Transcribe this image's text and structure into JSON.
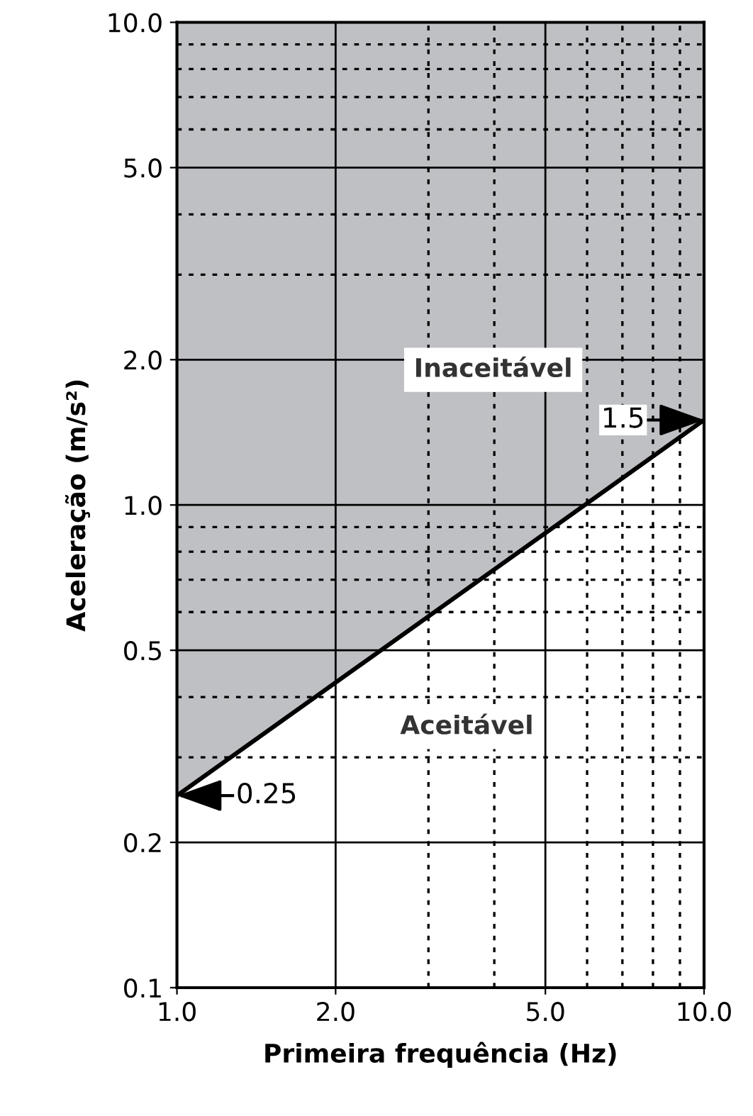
{
  "chart_data": {
    "type": "line",
    "xlabel": "Primeira frequência (Hz)",
    "ylabel": "Aceleração (m/s²)",
    "log": "xy",
    "grid": true,
    "xlim": [
      1,
      10
    ],
    "ylim": [
      0.1,
      10
    ],
    "xticks": [
      {
        "value": 1,
        "label": "1.0"
      },
      {
        "value": 2,
        "label": "2.0"
      },
      {
        "value": 5,
        "label": "5.0"
      },
      {
        "value": 10,
        "label": "10.0"
      }
    ],
    "yticks": [
      {
        "value": 0.1,
        "label": "0.1"
      },
      {
        "value": 0.2,
        "label": "0.2"
      },
      {
        "value": 0.5,
        "label": "0.5"
      },
      {
        "value": 1,
        "label": "1.0"
      },
      {
        "value": 2,
        "label": "2.0"
      },
      {
        "value": 5,
        "label": "5.0"
      },
      {
        "value": 10,
        "label": "10.0"
      }
    ],
    "series": [
      {
        "color": "#000000",
        "x": [
          1,
          10
        ],
        "values": [
          0.25,
          1.5
        ],
        "lower": [
          0.25,
          1.5
        ],
        "upper": [
          10,
          10
        ]
      }
    ],
    "annotations": [
      "Inaceitável",
      "Aceitável",
      {
        "text": "0.25",
        "x": 1,
        "y": 0.25
      },
      {
        "text": "1.5",
        "x": 10,
        "y": 1.5
      }
    ]
  }
}
